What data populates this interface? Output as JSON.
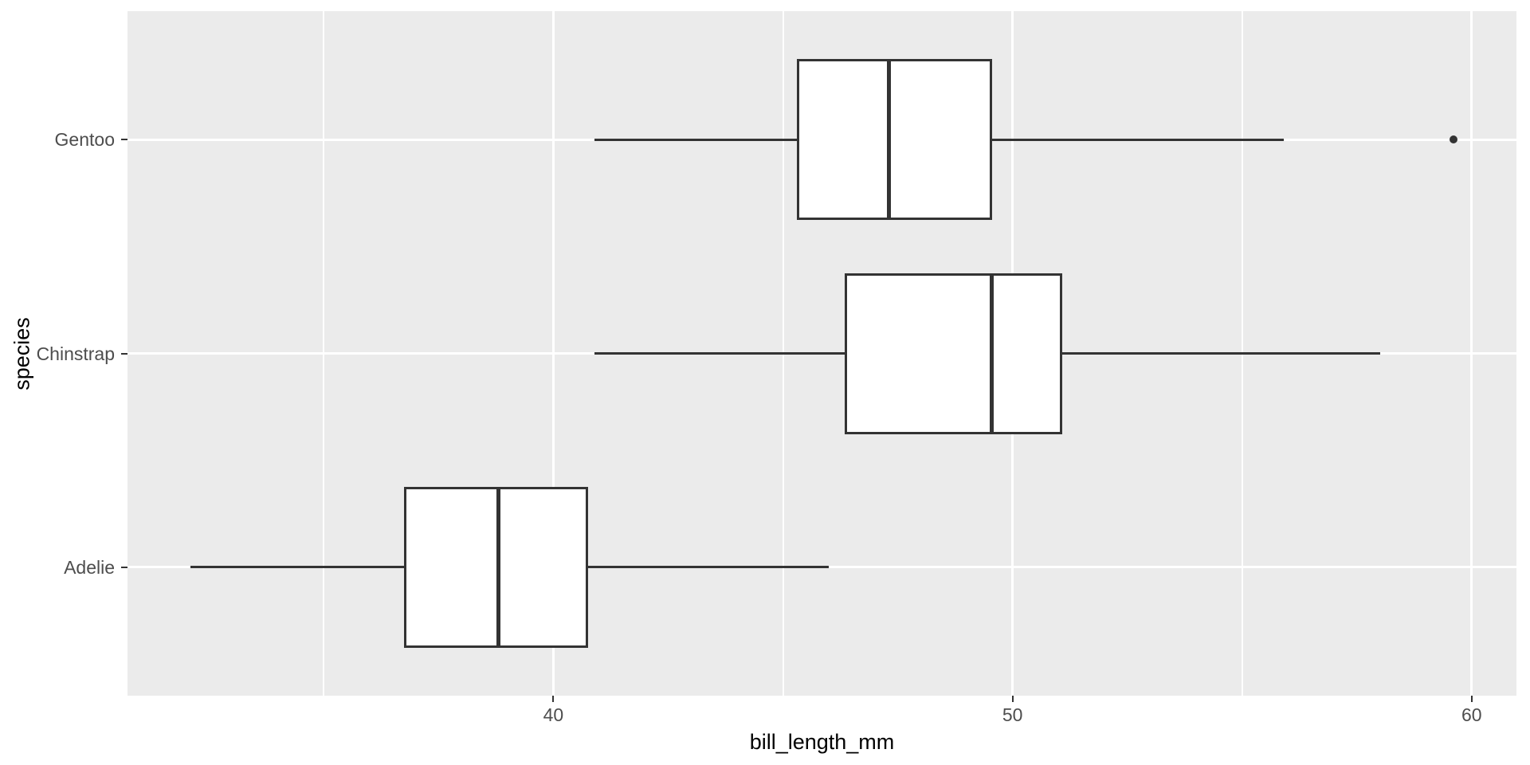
{
  "chart_data": {
    "type": "boxplot",
    "orientation": "horizontal",
    "title": "",
    "xlabel": "bill_length_mm",
    "ylabel": "species",
    "xlim": [
      30.725,
      60.975
    ],
    "x_major_ticks": [
      40,
      50,
      60
    ],
    "x_minor_ticks": [
      35,
      45,
      55
    ],
    "categories_bottom_to_top": [
      "Adelie",
      "Chinstrap",
      "Gentoo"
    ],
    "grid": true,
    "legend_position": "none",
    "series": [
      {
        "name": "Adelie",
        "whisker_low": 32.1,
        "q1": 36.75,
        "median": 38.8,
        "q3": 40.75,
        "whisker_high": 46.0,
        "outliers": []
      },
      {
        "name": "Chinstrap",
        "whisker_low": 40.9,
        "q1": 46.35,
        "median": 49.55,
        "q3": 51.08,
        "whisker_high": 58.0,
        "outliers": []
      },
      {
        "name": "Gentoo",
        "whisker_low": 40.9,
        "q1": 45.3,
        "median": 47.3,
        "q3": 49.55,
        "whisker_high": 55.9,
        "outliers": [
          59.6
        ]
      }
    ]
  },
  "style": {
    "panel_bg": "#EBEBEB",
    "grid_color": "#FFFFFF",
    "box_stroke": "#333333",
    "box_fill": "#FFFFFF",
    "tick_label_color": "#4D4D4D",
    "axis_title_color": "#000000",
    "tick_mark_color": "#333333"
  }
}
